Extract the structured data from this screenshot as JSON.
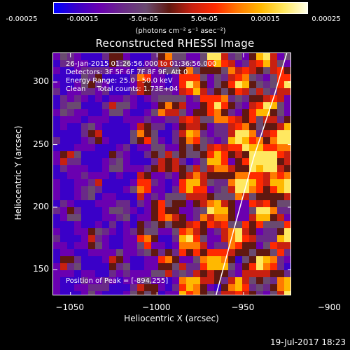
{
  "colorbar": {
    "colors": [
      "#0000ff",
      "#3a00c8",
      "#6a00b0",
      "#6a2a88",
      "#6a4a70",
      "#601810",
      "#c82010",
      "#ff2a00",
      "#ff7a00",
      "#ffb800",
      "#ffe860",
      "#ffffe8"
    ],
    "ticks": [
      "-0.00025",
      "-0.00015",
      "-5.0e-05",
      "5.0e-05",
      "0.00015",
      "0.00025"
    ],
    "units": "(photons cm⁻² s⁻¹ asec⁻²)"
  },
  "title": "Reconstructed RHESSI Image",
  "info": {
    "time_range": "26-Jan-2015 01:26:56.000 to 01:36:56.000",
    "detectors": "Detectors: 3F 5F 6F 7F 8F 9F, Att 0",
    "energy_range": "Energy Range: 25.0 - 50.0 keV",
    "clean_counts": "Clean     Total counts: 1.73E+04",
    "peak": "Position of Peak = [-894,255]"
  },
  "chart_data": {
    "type": "heatmap",
    "title": "Reconstructed RHESSI Image",
    "xlabel": "Heliocentric X (arcsec)",
    "ylabel": "Heliocentric Y (arcsec)",
    "xlim": [
      -1060,
      -922
    ],
    "ylim": [
      129,
      323
    ],
    "xticks": [
      -1050,
      -1000,
      -950,
      -900
    ],
    "yticks": [
      150,
      200,
      250,
      300
    ],
    "xtick_labels": [
      "−1050",
      "−1000",
      "−950",
      "−900"
    ],
    "ytick_labels": [
      "150",
      "200",
      "250",
      "300"
    ],
    "color_range": [
      -0.00025,
      0.00025
    ],
    "peak_position": [
      -894,
      255
    ],
    "limb_line": [
      [
        -966,
        129
      ],
      [
        -956,
        180
      ],
      [
        -944,
        240
      ],
      [
        -932,
        290
      ],
      [
        -925,
        323
      ]
    ]
  },
  "footer": "19-Jul-2017 18:23"
}
